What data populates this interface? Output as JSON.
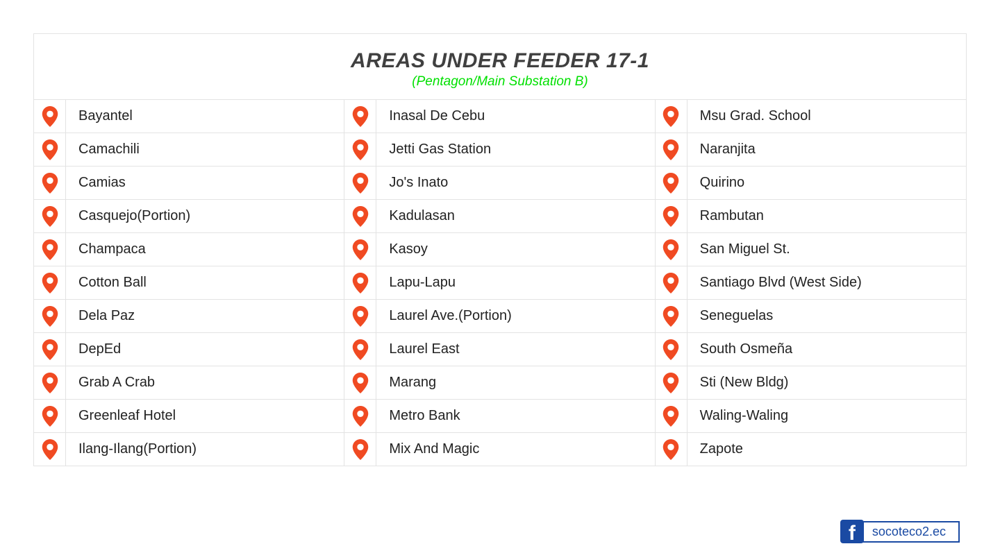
{
  "header": {
    "title": "AREAS UNDER FEEDER 17-1",
    "subtitle": "(Pentagon/Main Substation B)"
  },
  "columns": [
    [
      "Bayantel",
      "Camachili",
      "Camias",
      "Casquejo(Portion)",
      "Champaca",
      "Cotton Ball",
      "Dela Paz",
      "DepEd",
      "Grab A Crab",
      "Greenleaf Hotel",
      "Ilang-Ilang(Portion)"
    ],
    [
      "Inasal De Cebu",
      "Jetti Gas Station",
      "Jo's Inato",
      "Kadulasan",
      "Kasoy",
      "Lapu-Lapu",
      "Laurel Ave.(Portion)",
      "Laurel East",
      "Marang",
      "Metro Bank",
      "Mix And Magic"
    ],
    [
      "Msu Grad. School",
      "Naranjita",
      "Quirino",
      "Rambutan",
      "San Miguel St.",
      "Santiago Blvd (West Side)",
      "Seneguelas",
      "South Osmeña",
      "Sti (New Bldg)",
      "Waling-Waling",
      "Zapote"
    ]
  ],
  "icon": {
    "name": "location-pin-icon",
    "fill": "#f04a22",
    "inner": "#ffffff"
  },
  "footer": {
    "platform_label": "f",
    "handle": "socoteco2.ec"
  },
  "colors": {
    "title": "#404040",
    "subtitle": "#00e000",
    "border": "#e3e3e3",
    "text": "#222222",
    "facebook": "#1a4aa3",
    "background": "#ffffff"
  }
}
